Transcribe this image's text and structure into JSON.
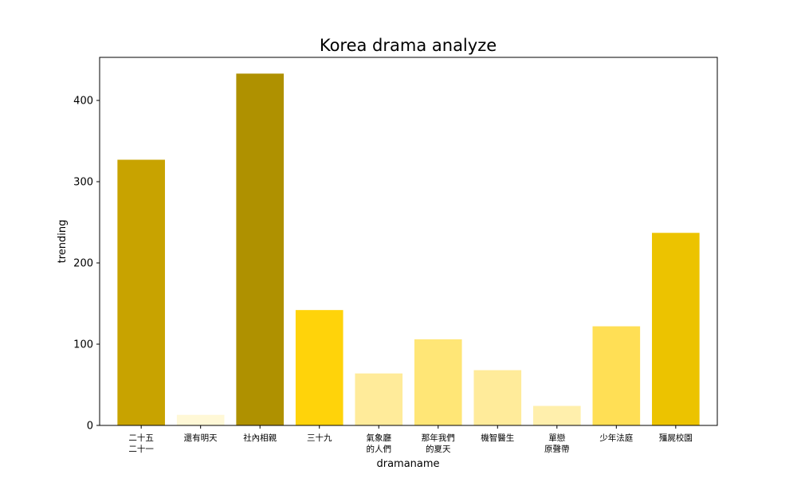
{
  "chart_data": {
    "type": "bar",
    "title": "Korea drama analyze",
    "xlabel": "dramaname",
    "ylabel": "trending",
    "ylim": [
      0,
      453
    ],
    "yticks": [
      0,
      100,
      200,
      300,
      400
    ],
    "grid": false,
    "categories": [
      [
        "二十五",
        "二十一"
      ],
      [
        "還有明天"
      ],
      [
        "社內相親"
      ],
      [
        "三十九"
      ],
      [
        "氣象廳",
        "的人們"
      ],
      [
        "那年我們",
        "的夏天"
      ],
      [
        "機智醫生"
      ],
      [
        "單戀",
        "原聲帶"
      ],
      [
        "少年法庭"
      ],
      [
        "殭屍校園"
      ]
    ],
    "values": [
      327,
      13,
      433,
      142,
      64,
      106,
      68,
      24,
      122,
      237
    ],
    "colors": [
      "#c8a300",
      "#fff8d6",
      "#af9100",
      "#ffd30a",
      "#ffeb9a",
      "#ffe676",
      "#ffeb9a",
      "#ffefac",
      "#ffdf55",
      "#ecc300"
    ]
  }
}
